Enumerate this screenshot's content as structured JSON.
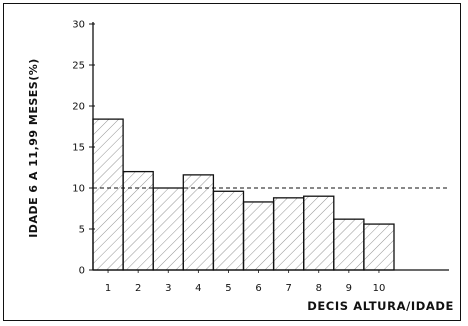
{
  "chart_data": {
    "type": "bar",
    "ylabel": "IDADE 6 A 11,99 MESES(%)",
    "xlabel": "DECIS ALTURA/IDADE",
    "categories": [
      "1",
      "2",
      "3",
      "4",
      "5",
      "6",
      "7",
      "8",
      "9",
      "10"
    ],
    "values": [
      18.4,
      12.0,
      10.0,
      11.6,
      9.6,
      8.3,
      8.8,
      9.0,
      6.2,
      5.6
    ],
    "ylim": [
      0,
      30
    ],
    "yticks": [
      "0",
      "5",
      "10",
      "15",
      "20",
      "25",
      "30"
    ],
    "reference_line": 10,
    "grid": false,
    "hatched_bars": true,
    "colors": {
      "ink": "#111111",
      "hatch": "#555555",
      "background": "#ffffff"
    }
  }
}
